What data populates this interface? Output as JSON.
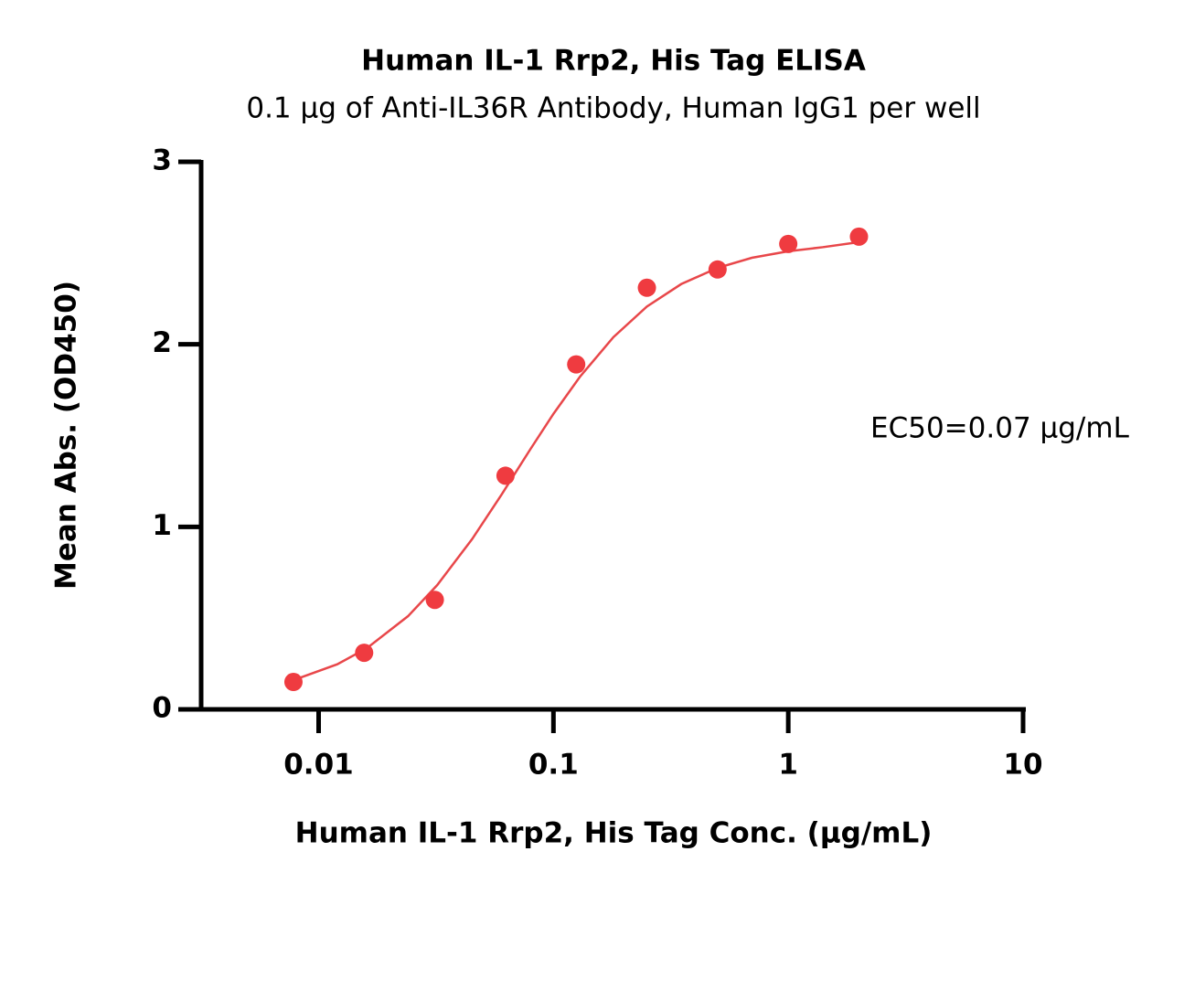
{
  "chart_data": {
    "type": "scatter",
    "title": "Human IL-1 Rrp2, His Tag ELISA",
    "subtitle": "0.1 μg of Anti-IL36R Antibody, Human IgG1 per well",
    "x_label": "Human IL-1 Rrp2, His Tag Conc. (μg/mL)",
    "y_label": "Mean Abs. (OD450)",
    "annotation": "EC50=0.07 μg/mL",
    "xscale": "log",
    "xlim": [
      0.00316,
      10
    ],
    "ylim": [
      0,
      3
    ],
    "xticks": [
      0.01,
      0.1,
      1,
      10
    ],
    "yticks": [
      0,
      1,
      2,
      3
    ],
    "series": [
      {
        "type": "scatter",
        "color": "#ef3b40",
        "x": [
          0.0078125,
          0.015625,
          0.03125,
          0.0625,
          0.125,
          0.25,
          0.5,
          1,
          2
        ],
        "values": [
          0.15,
          0.31,
          0.6,
          1.28,
          1.89,
          2.31,
          2.41,
          2.55,
          2.59
        ]
      },
      {
        "type": "line",
        "color": "#e8474a",
        "x": [
          0.008,
          0.012,
          0.016,
          0.024,
          0.032,
          0.045,
          0.06,
          0.08,
          0.1,
          0.13,
          0.18,
          0.25,
          0.35,
          0.5,
          0.7,
          1,
          1.4,
          2
        ],
        "values": [
          0.165,
          0.247,
          0.334,
          0.51,
          0.681,
          0.932,
          1.175,
          1.428,
          1.619,
          1.824,
          2.039,
          2.207,
          2.33,
          2.419,
          2.474,
          2.51,
          2.532,
          2.56
        ]
      }
    ]
  }
}
